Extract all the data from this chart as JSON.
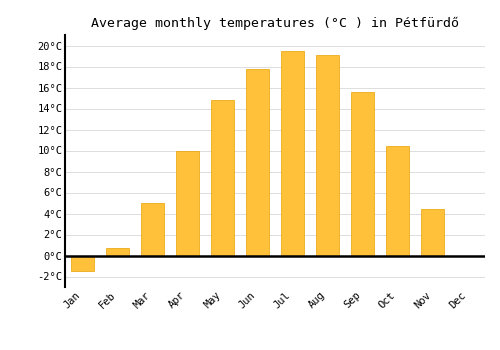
{
  "title": "Average monthly temperatures (°C ) in Pétfürdő",
  "months": [
    "Jan",
    "Feb",
    "Mar",
    "Apr",
    "May",
    "Jun",
    "Jul",
    "Aug",
    "Sep",
    "Oct",
    "Nov",
    "Dec"
  ],
  "values": [
    -1.5,
    0.7,
    5.0,
    10.0,
    14.8,
    17.8,
    19.5,
    19.1,
    15.6,
    10.4,
    4.4,
    0.0
  ],
  "bar_color": "#FFC03A",
  "bar_edge_color": "#E8A000",
  "plot_bg_color": "#FFFFFF",
  "fig_bg_color": "#FFFFFF",
  "grid_color": "#DDDDDD",
  "zero_line_color": "#000000",
  "left_spine_color": "#000000",
  "ylim": [
    -3,
    21
  ],
  "yticks": [
    0,
    2,
    4,
    6,
    8,
    10,
    12,
    14,
    16,
    18,
    20
  ],
  "ytick_labels": [
    "0°C",
    "2°C",
    "4°C",
    "6°C",
    "8°C",
    "10°C",
    "12°C",
    "14°C",
    "16°C",
    "18°C",
    "20°C"
  ],
  "ytick_extra": -2,
  "ytick_extra_label": "-2°C",
  "title_fontsize": 9.5,
  "tick_fontsize": 7.5,
  "bar_width": 0.65,
  "fig_width": 5.0,
  "fig_height": 3.5,
  "dpi": 100
}
